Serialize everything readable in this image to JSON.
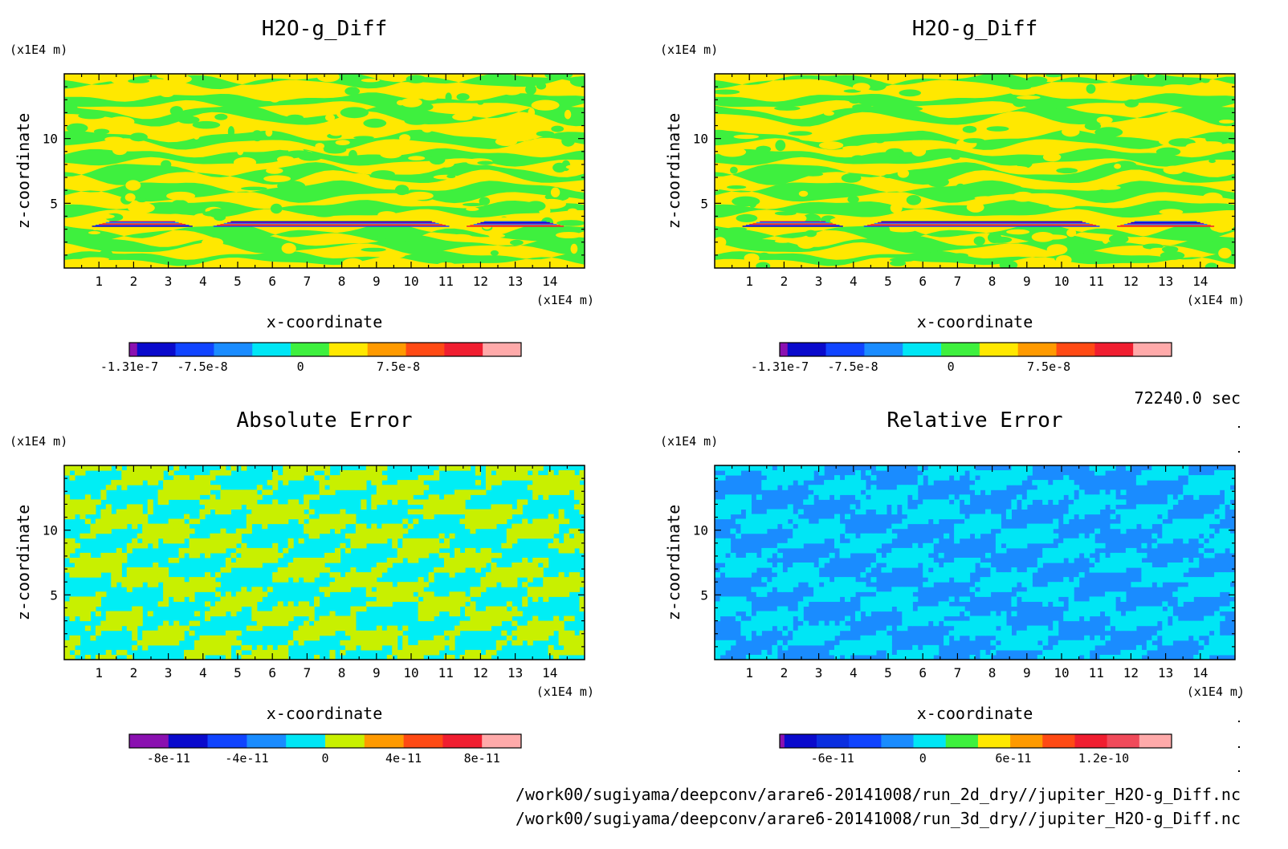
{
  "footer": {
    "time": "72240.0 sec",
    "file_2d": "/work00/sugiyama/deepconv/arare6-20141008/run_2d_dry//jupiter_H2O-g_Diff.nc",
    "file_3d": "/work00/sugiyama/deepconv/arare6-20141008/run_3d_dry//jupiter_H2O-g_Diff.nc"
  },
  "chart_data": [
    {
      "type": "heatmap",
      "title": "H2O-g_Diff",
      "xlabel": "x-coordinate",
      "ylabel": "z-coordinate",
      "x_unit": "(x1E4 m)",
      "y_unit": "(x1E4 m)",
      "xlim": [
        0,
        15
      ],
      "ylim": [
        0,
        15
      ],
      "x_ticks": [
        1,
        2,
        3,
        4,
        5,
        6,
        7,
        8,
        9,
        10,
        11,
        12,
        13,
        14
      ],
      "y_ticks": [
        5,
        10
      ],
      "pattern": "banded",
      "dominant_colors": [
        "#ffe800",
        "#3ef03e"
      ],
      "anomaly_band_z": 3.4,
      "colorbar": {
        "colors": [
          "#8a10b0",
          "#0a0acc",
          "#1044ff",
          "#1a8cff",
          "#00e6f5",
          "#3ef03e",
          "#ffe800",
          "#ff9a00",
          "#ff4a14",
          "#f01e30",
          "#ffaaaa"
        ],
        "tick_labels": [
          "-1.31e-7",
          "-7.5e-8",
          "0",
          "7.5e-8"
        ],
        "tick_values": [
          -1.31e-07,
          -7.5e-08,
          0,
          7.5e-08
        ],
        "range": [
          -1.31e-07,
          1.69e-07
        ]
      }
    },
    {
      "type": "heatmap",
      "title": "H2O-g_Diff",
      "xlabel": "x-coordinate",
      "ylabel": "z-coordinate",
      "x_unit": "(x1E4 m)",
      "y_unit": "(x1E4 m)",
      "xlim": [
        0,
        15
      ],
      "ylim": [
        0,
        15
      ],
      "x_ticks": [
        1,
        2,
        3,
        4,
        5,
        6,
        7,
        8,
        9,
        10,
        11,
        12,
        13,
        14
      ],
      "y_ticks": [
        5,
        10
      ],
      "pattern": "banded",
      "dominant_colors": [
        "#ffe800",
        "#3ef03e"
      ],
      "anomaly_band_z": 3.4,
      "colorbar": {
        "colors": [
          "#8a10b0",
          "#0a0acc",
          "#1044ff",
          "#1a8cff",
          "#00e6f5",
          "#3ef03e",
          "#ffe800",
          "#ff9a00",
          "#ff4a14",
          "#f01e30",
          "#ffaaaa"
        ],
        "tick_labels": [
          "-1.31e-7",
          "-7.5e-8",
          "0",
          "7.5e-8"
        ],
        "tick_values": [
          -1.31e-07,
          -7.5e-08,
          0,
          7.5e-08
        ],
        "range": [
          -1.31e-07,
          1.69e-07
        ]
      }
    },
    {
      "type": "heatmap",
      "title": "Absolute Error",
      "xlabel": "x-coordinate",
      "ylabel": "z-coordinate",
      "x_unit": "(x1E4 m)",
      "y_unit": "(x1E4 m)",
      "xlim": [
        0,
        15
      ],
      "ylim": [
        0,
        15
      ],
      "x_ticks": [
        1,
        2,
        3,
        4,
        5,
        6,
        7,
        8,
        9,
        10,
        11,
        12,
        13,
        14
      ],
      "y_ticks": [
        5,
        10
      ],
      "pattern": "noisy",
      "dominant_colors": [
        "#00eef5",
        "#c8f000"
      ],
      "colorbar": {
        "colors": [
          "#8a10b0",
          "#0a0acc",
          "#1044ff",
          "#1a8cff",
          "#00e6f5",
          "#c8f000",
          "#ff9a00",
          "#ff4a14",
          "#f01e30",
          "#ffaaaa"
        ],
        "tick_labels": [
          "-8e-11",
          "-4e-11",
          "0",
          "4e-11",
          "8e-11"
        ],
        "tick_values": [
          -8e-11,
          -4e-11,
          0,
          4e-11,
          8e-11
        ],
        "range": [
          -1e-10,
          1e-10
        ]
      }
    },
    {
      "type": "heatmap",
      "title": "Relative Error",
      "xlabel": "x-coordinate",
      "ylabel": "z-coordinate",
      "x_unit": "(x1E4 m)",
      "y_unit": "(x1E4 m)",
      "xlim": [
        0,
        15
      ],
      "ylim": [
        0,
        15
      ],
      "x_ticks": [
        1,
        2,
        3,
        4,
        5,
        6,
        7,
        8,
        9,
        10,
        11,
        12,
        13,
        14
      ],
      "y_ticks": [
        5,
        10
      ],
      "pattern": "noisy",
      "dominant_colors": [
        "#1a8cff",
        "#00e6f5"
      ],
      "colorbar": {
        "colors": [
          "#8a10b0",
          "#0a0acc",
          "#0a2ee0",
          "#1044ff",
          "#1a8cff",
          "#00e6f5",
          "#3ef03e",
          "#ffe800",
          "#ff9a00",
          "#ff4a14",
          "#f01e30",
          "#f04a5a",
          "#ffaaaa"
        ],
        "tick_labels": [
          "-6e-11",
          "0",
          "6e-11",
          "1.2e-10"
        ],
        "tick_values": [
          -6e-11,
          0,
          6e-11,
          1.2e-10
        ],
        "range": [
          -9.5e-11,
          1.65e-10
        ]
      }
    }
  ]
}
